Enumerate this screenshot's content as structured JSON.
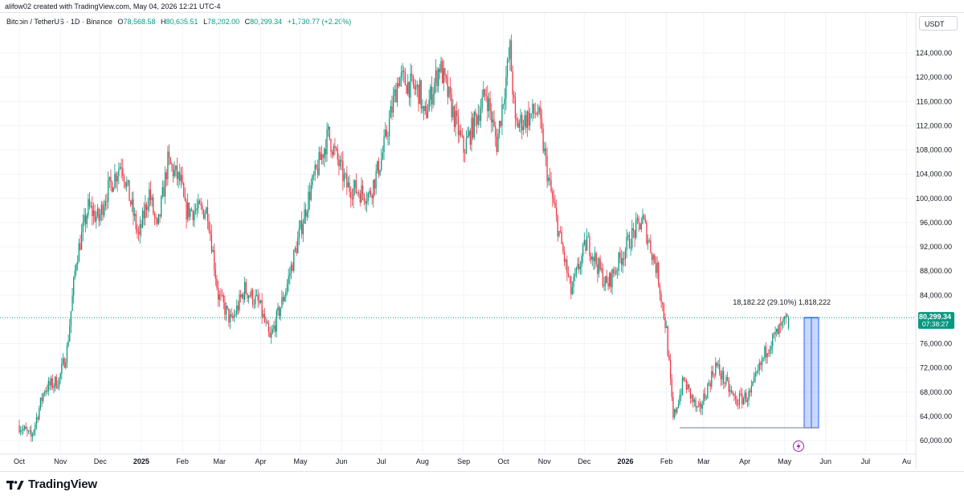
{
  "credit": "alifow02 created with TradingView.com, May 04, 2026 12:21 UTC-4",
  "legend": {
    "symbol": "Bitcoin / TetherUS · 1D · Binance",
    "o_label": "O",
    "o_value": "78,568.58",
    "h_label": "H",
    "h_value": "80,635.51",
    "l_label": "L",
    "l_value": "78,202.00",
    "c_label": "C",
    "c_value": "80,299.34",
    "change": "+1,730.77 (+2.20%)"
  },
  "currency_button": "USDT",
  "brand": "TradingView",
  "colors": {
    "up": "#089981",
    "down": "#f23645",
    "measure": "#2962ff"
  },
  "chart_data": {
    "type": "candlestick",
    "x_axis": {
      "labels": [
        "Oct",
        "Nov",
        "Dec",
        "2025",
        "Feb",
        "Mar",
        "Apr",
        "May",
        "Jun",
        "Jul",
        "Aug",
        "Sep",
        "Oct",
        "Nov",
        "Dec",
        "2026",
        "Feb",
        "Mar",
        "Apr",
        "May",
        "Jun",
        "Jul",
        "Au"
      ],
      "bold": [
        "2025",
        "2026"
      ]
    },
    "y_axis": {
      "ticks": [
        "60,000.00",
        "64,000.00",
        "68,000.00",
        "72,000.00",
        "76,000.00",
        "80,000.00",
        "84,000.00",
        "88,000.00",
        "92,000.00",
        "96,000.00",
        "100,000.00",
        "104,000.00",
        "108,000.00",
        "112,000.00",
        "116,000.00",
        "120,000.00",
        "124,000.00"
      ],
      "range": [
        58000,
        128000
      ]
    },
    "last_price": {
      "value": "80,299.34",
      "countdown": "07:38:27"
    },
    "measure": {
      "label": "18,182.22 (29.10%) 1,818,222",
      "from": 62100,
      "to": 80300
    },
    "anchors": [
      [
        "2024-10-01",
        62500
      ],
      [
        "2024-10-10",
        60500
      ],
      [
        "2024-10-20",
        68500
      ],
      [
        "2024-10-31",
        70000
      ],
      [
        "2024-11-06",
        75000
      ],
      [
        "2024-11-13",
        90000
      ],
      [
        "2024-11-22",
        98500
      ],
      [
        "2024-11-30",
        96500
      ],
      [
        "2024-12-05",
        100500
      ],
      [
        "2024-12-17",
        106000
      ],
      [
        "2024-12-30",
        93500
      ],
      [
        "2025-01-07",
        101000
      ],
      [
        "2025-01-13",
        94500
      ],
      [
        "2025-01-21",
        106000
      ],
      [
        "2025-01-31",
        102500
      ],
      [
        "2025-02-03",
        98000
      ],
      [
        "2025-02-20",
        98000
      ],
      [
        "2025-02-28",
        84000
      ],
      [
        "2025-03-10",
        79500
      ],
      [
        "2025-03-20",
        85000
      ],
      [
        "2025-03-31",
        82500
      ],
      [
        "2025-04-08",
        76500
      ],
      [
        "2025-04-20",
        85000
      ],
      [
        "2025-05-08",
        101000
      ],
      [
        "2025-05-22",
        110500
      ],
      [
        "2025-06-05",
        102000
      ],
      [
        "2025-06-22",
        100500
      ],
      [
        "2025-07-01",
        106500
      ],
      [
        "2025-07-14",
        120000
      ],
      [
        "2025-07-30",
        117500
      ],
      [
        "2025-08-02",
        113000
      ],
      [
        "2025-08-14",
        122000
      ],
      [
        "2025-09-01",
        108000
      ],
      [
        "2025-09-18",
        117500
      ],
      [
        "2025-09-26",
        109000
      ],
      [
        "2025-10-06",
        124500
      ],
      [
        "2025-10-10",
        112000
      ],
      [
        "2025-10-27",
        114500
      ],
      [
        "2025-11-04",
        103000
      ],
      [
        "2025-11-21",
        84500
      ],
      [
        "2025-12-03",
        93000
      ],
      [
        "2025-12-18",
        85500
      ],
      [
        "2026-01-05",
        93500
      ],
      [
        "2026-01-14",
        96500
      ],
      [
        "2026-01-25",
        88000
      ],
      [
        "2026-02-01",
        78000
      ],
      [
        "2026-02-06",
        63500
      ],
      [
        "2026-02-14",
        70000
      ],
      [
        "2026-02-25",
        64500
      ],
      [
        "2026-03-10",
        72500
      ],
      [
        "2026-03-25",
        66500
      ],
      [
        "2026-04-05",
        67500
      ],
      [
        "2026-04-18",
        75500
      ],
      [
        "2026-04-25",
        77500
      ],
      [
        "2026-05-04",
        80300
      ]
    ]
  }
}
